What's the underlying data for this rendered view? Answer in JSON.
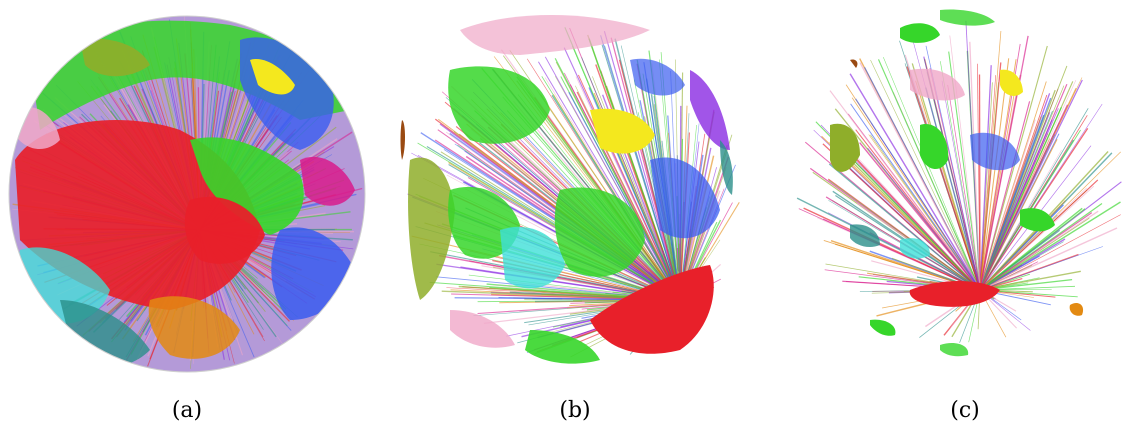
{
  "figure": {
    "panels": [
      {
        "caption": "(a)",
        "subject": "dense-sphere-render"
      },
      {
        "caption": "(b)",
        "subject": "medium-sphere-render"
      },
      {
        "caption": "(c)",
        "subject": "sparse-sphere-render"
      }
    ],
    "palette": {
      "red": "#e8202a",
      "green": "#36d62a",
      "magenta": "#d81b8c",
      "purple": "#8a2be2",
      "blue": "#3a5cf0",
      "yellow": "#f4e81e",
      "orange": "#e38a12",
      "olive": "#8fae2a",
      "cyan": "#3fe0d8",
      "pink": "#f0a8c8",
      "teal": "#2a8f8a",
      "brown": "#9a4a12"
    }
  }
}
